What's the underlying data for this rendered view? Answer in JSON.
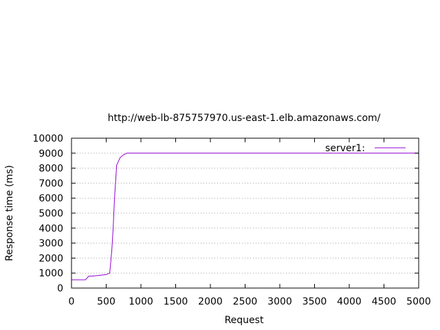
{
  "chart_data": {
    "type": "line",
    "title": "http://web-lb-875757970.us-east-1.elb.amazonaws.com/",
    "xlabel": "Request",
    "ylabel": "Response time (ms)",
    "xlim": [
      0,
      5000
    ],
    "ylim": [
      0,
      10000
    ],
    "x_ticks": [
      0,
      500,
      1000,
      1500,
      2000,
      2500,
      3000,
      3500,
      4000,
      4500,
      5000
    ],
    "y_ticks": [
      0,
      1000,
      2000,
      3000,
      4000,
      5000,
      6000,
      7000,
      8000,
      9000,
      10000
    ],
    "grid": "horizontal dotted",
    "legend_position": "top-right",
    "series": [
      {
        "name": "server1:",
        "color": "#9400d3",
        "x": [
          0,
          200,
          250,
          300,
          400,
          500,
          550,
          580,
          600,
          620,
          650,
          700,
          750,
          800,
          850,
          1000,
          2000,
          3000,
          4000,
          5000
        ],
        "y": [
          550,
          550,
          800,
          800,
          850,
          900,
          1000,
          2500,
          4000,
          6000,
          8200,
          8700,
          8900,
          9000,
          9000,
          9000,
          9000,
          9000,
          9000,
          9000
        ]
      }
    ]
  }
}
